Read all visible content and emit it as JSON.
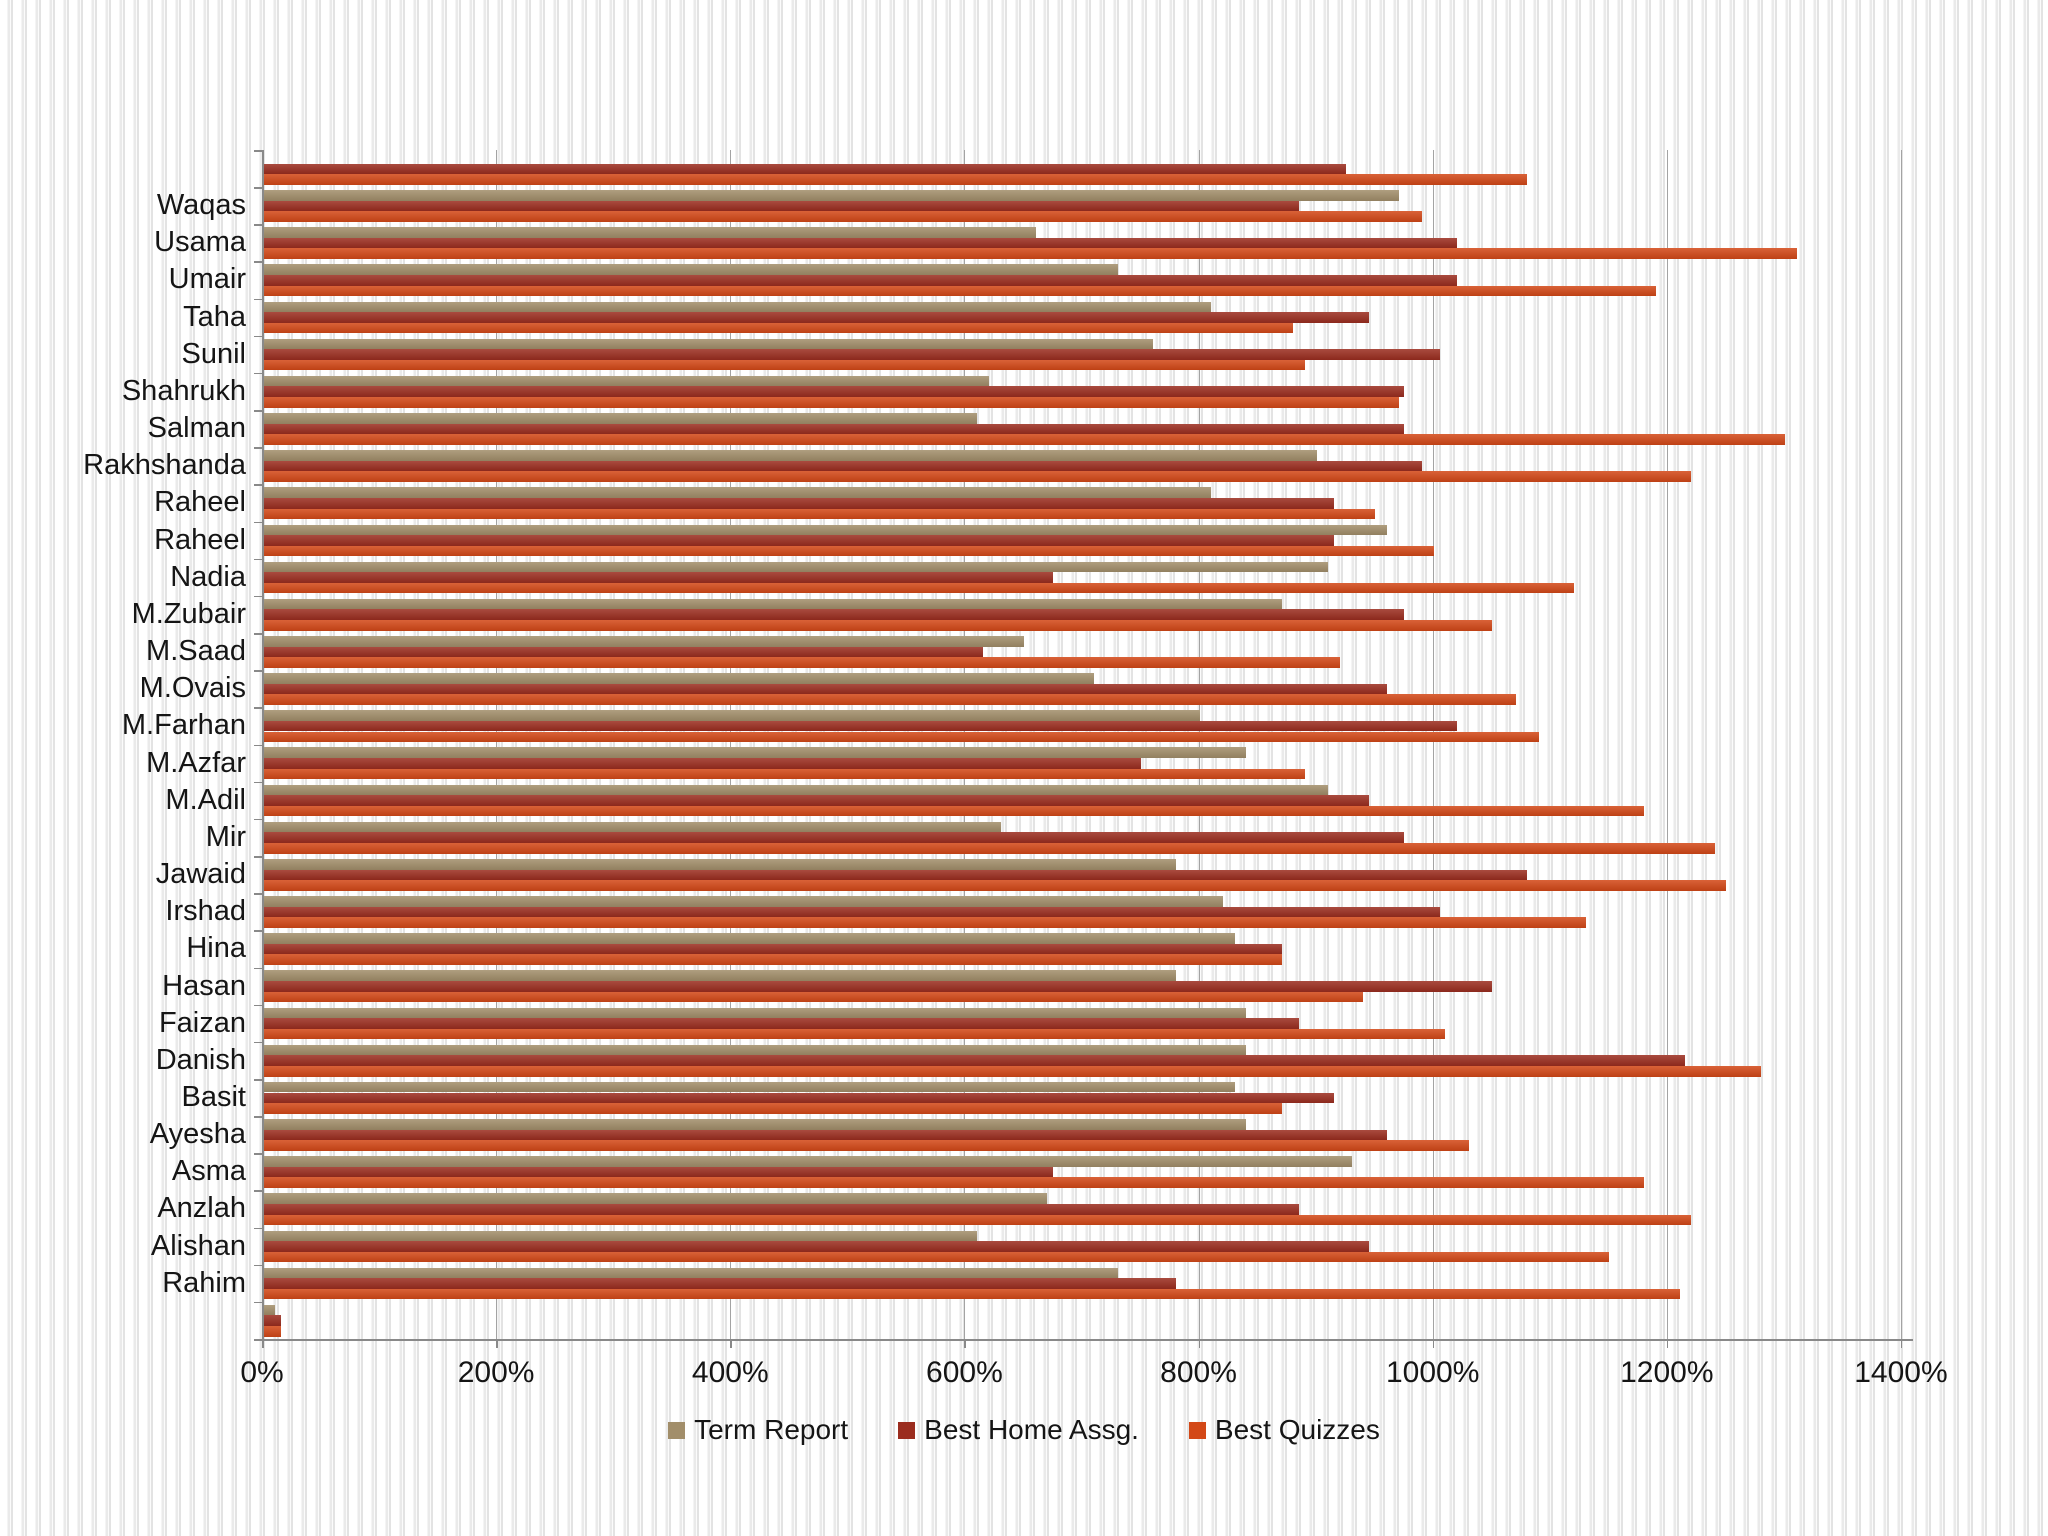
{
  "chart_data": {
    "type": "bar",
    "orientation": "horizontal",
    "title": "",
    "xlabel": "",
    "ylabel": "",
    "x_ticks": [
      "0%",
      "200%",
      "400%",
      "600%",
      "800%",
      "1000%",
      "1200%",
      "1400%"
    ],
    "x_max_percent": 1400,
    "grid": "vertical-major-200pct",
    "legend_position": "bottom-center",
    "categories": [
      "",
      "Waqas",
      "Usama",
      "Umair",
      "Taha",
      "Sunil",
      "Shahrukh",
      "Salman",
      "Rakhshanda",
      "Raheel",
      "Raheel",
      "Nadia",
      "M.Zubair",
      "M.Saad",
      "M.Ovais",
      "M.Farhan",
      "M.Azfar",
      "M.Adil",
      "Mir",
      "Jawaid",
      "Irshad",
      "Hina",
      "Hasan",
      "Faizan",
      "Danish",
      "Basit",
      "Ayesha",
      "Asma",
      "Anzlah",
      "Alishan",
      "Rahim",
      ""
    ],
    "series": [
      {
        "name": "Term Report",
        "color": "#A28E6A",
        "values": [
          null,
          970,
          660,
          730,
          810,
          760,
          620,
          610,
          900,
          810,
          960,
          910,
          870,
          650,
          710,
          800,
          840,
          910,
          630,
          780,
          820,
          830,
          780,
          840,
          840,
          830,
          840,
          930,
          670,
          610,
          730,
          10
        ]
      },
      {
        "name": "Best Home Assg.",
        "color": "#9B2D1F",
        "values": [
          925,
          885,
          1020,
          1020,
          945,
          1005,
          975,
          975,
          990,
          915,
          915,
          675,
          975,
          615,
          960,
          1020,
          750,
          945,
          975,
          1080,
          1005,
          870,
          1050,
          885,
          1215,
          915,
          960,
          675,
          885,
          945,
          780,
          15
        ]
      },
      {
        "name": "Best Quizzes",
        "color": "#D34817",
        "values": [
          1080,
          990,
          1310,
          1190,
          880,
          890,
          970,
          1300,
          1220,
          950,
          1000,
          1120,
          1050,
          920,
          1070,
          1090,
          890,
          1180,
          1240,
          1250,
          1130,
          870,
          940,
          1010,
          1280,
          870,
          1030,
          1180,
          1220,
          1150,
          1210,
          15
        ]
      }
    ],
    "axis_colors": {
      "gridline": "#a3a3a3",
      "axis_line": "#898989",
      "label": "#151515"
    }
  },
  "legend": {
    "items": [
      "Term Report",
      "Best Home Assg.",
      "Best Quizzes"
    ]
  }
}
